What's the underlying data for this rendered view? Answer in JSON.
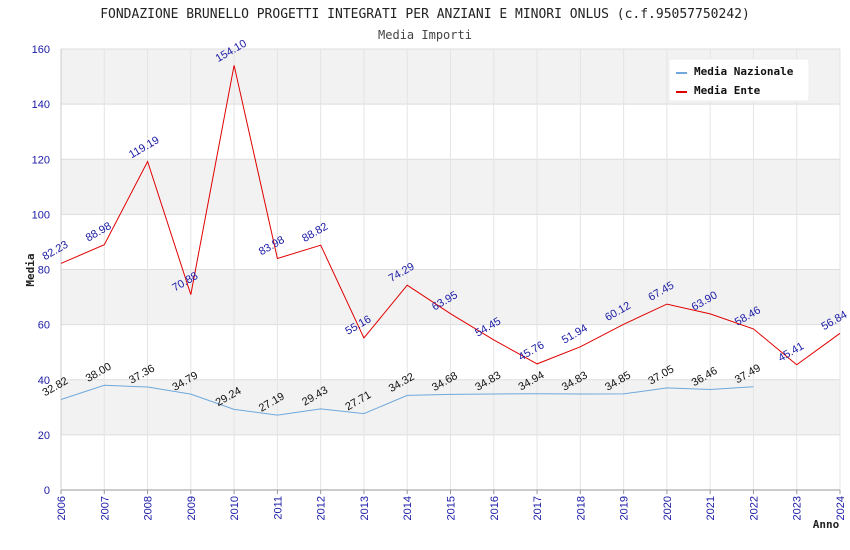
{
  "chart_data": {
    "type": "line",
    "title": "FONDAZIONE BRUNELLO PROGETTI INTEGRATI PER ANZIANI E MINORI ONLUS (c.f.95057750242)",
    "subtitle": "Media Importi",
    "xlabel": "Anno",
    "ylabel": "Media",
    "ylim": [
      0,
      160
    ],
    "yticks": [
      0,
      20,
      40,
      60,
      80,
      100,
      120,
      140,
      160
    ],
    "categories": [
      "2006",
      "2007",
      "2008",
      "2009",
      "2010",
      "2011",
      "2012",
      "2013",
      "2014",
      "2015",
      "2016",
      "2017",
      "2018",
      "2019",
      "2020",
      "2021",
      "2022",
      "2023",
      "2024"
    ],
    "series": [
      {
        "name": "Media Nazionale",
        "color": "#6fa8dc",
        "values": [
          32.82,
          38.0,
          37.36,
          34.79,
          29.24,
          27.19,
          29.43,
          27.71,
          34.32,
          34.68,
          34.83,
          34.94,
          34.83,
          34.85,
          37.05,
          36.46,
          37.49,
          null,
          null
        ],
        "labels": [
          "32.82",
          "38.00",
          "37.36",
          "34.79",
          "29.24",
          "27.19",
          "29.43",
          "27.71",
          "34.32",
          "34.68",
          "34.83",
          "34.94",
          "34.83",
          "34.85",
          "37.05",
          "36.46",
          "37.49",
          "",
          ""
        ]
      },
      {
        "name": "Media Ente",
        "color": "#e00000",
        "values": [
          82.23,
          88.98,
          119.19,
          70.88,
          154.1,
          83.98,
          88.82,
          55.16,
          74.29,
          63.95,
          54.45,
          45.76,
          51.94,
          60.12,
          67.45,
          63.9,
          58.46,
          45.41,
          56.84
        ],
        "labels": [
          "82.23",
          "88.98",
          "119.19",
          "70.88",
          "154.10",
          "83.98",
          "88.82",
          "55.16",
          "74.29",
          "63.95",
          "54.45",
          "45.76",
          "51.94",
          "60.12",
          "67.45",
          "63.90",
          "58.46",
          "45.41",
          "56.84"
        ]
      }
    ],
    "legend_position": "top-right",
    "grid": true
  }
}
